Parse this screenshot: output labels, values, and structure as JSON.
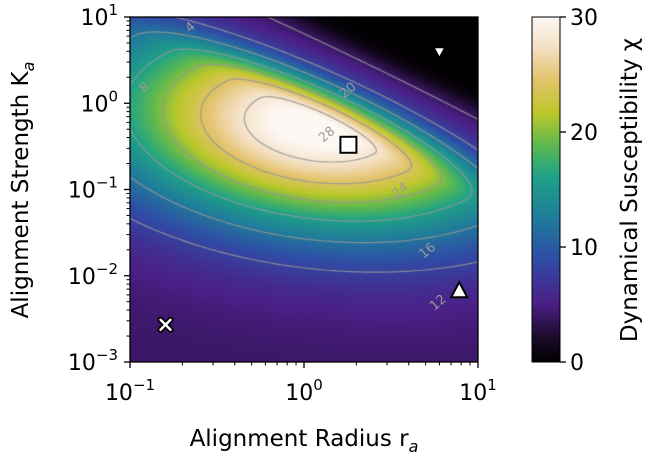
{
  "chart_data": {
    "type": "heatmap",
    "xlabel": "Alignment Radius r",
    "xlabel_sub": "a",
    "ylabel": "Alignment Strength K",
    "ylabel_sub": "a",
    "x_scale": "log",
    "y_scale": "log",
    "xlim": [
      0.1,
      10
    ],
    "ylim": [
      0.001,
      10
    ],
    "x_ticks": [
      {
        "base": "10",
        "exp": "−1",
        "value": 0.1
      },
      {
        "base": "10",
        "exp": "0",
        "value": 1
      },
      {
        "base": "10",
        "exp": "1",
        "value": 10
      }
    ],
    "y_ticks": [
      {
        "base": "10",
        "exp": "−3",
        "value": 0.001
      },
      {
        "base": "10",
        "exp": "−2",
        "value": 0.01
      },
      {
        "base": "10",
        "exp": "−1",
        "value": 0.1
      },
      {
        "base": "10",
        "exp": "0",
        "value": 1
      },
      {
        "base": "10",
        "exp": "1",
        "value": 10
      }
    ],
    "colorbar": {
      "label": "Dynamical Susceptibility χ",
      "range": [
        0,
        30
      ],
      "ticks": [
        "0",
        "10",
        "20",
        "30"
      ],
      "colormap": "gist_earth_r"
    },
    "contour_levels": [
      4,
      8,
      12,
      16,
      20,
      24,
      28
    ],
    "contour_labels": [
      {
        "text": "4",
        "x": 0.23,
        "y": 7.0
      },
      {
        "text": "8",
        "x": 0.125,
        "y": 1.4
      },
      {
        "text": "12",
        "x": 6.1,
        "y": 0.0045
      },
      {
        "text": "16",
        "x": 5.3,
        "y": 0.018
      },
      {
        "text": "24",
        "x": 3.7,
        "y": 0.09
      },
      {
        "text": "20",
        "x": 1.85,
        "y": 1.3
      },
      {
        "text": "28",
        "x": 1.4,
        "y": 0.4
      }
    ],
    "peak": {
      "x": 1.2,
      "y": 0.55
    },
    "markers": [
      {
        "shape": "square",
        "x": 1.8,
        "y": 0.33,
        "fill": "#ffffff",
        "stroke": "#000000"
      },
      {
        "shape": "triangle-down",
        "x": 6.0,
        "y": 3.9,
        "fill": "#ffffff",
        "stroke": "#000000"
      },
      {
        "shape": "triangle-up",
        "x": 7.8,
        "y": 0.0068,
        "fill": "#ffffff",
        "stroke": "#000000"
      },
      {
        "shape": "x",
        "x": 0.16,
        "y": 0.0027,
        "fill": "#ffffff",
        "stroke": "#000000"
      }
    ]
  }
}
